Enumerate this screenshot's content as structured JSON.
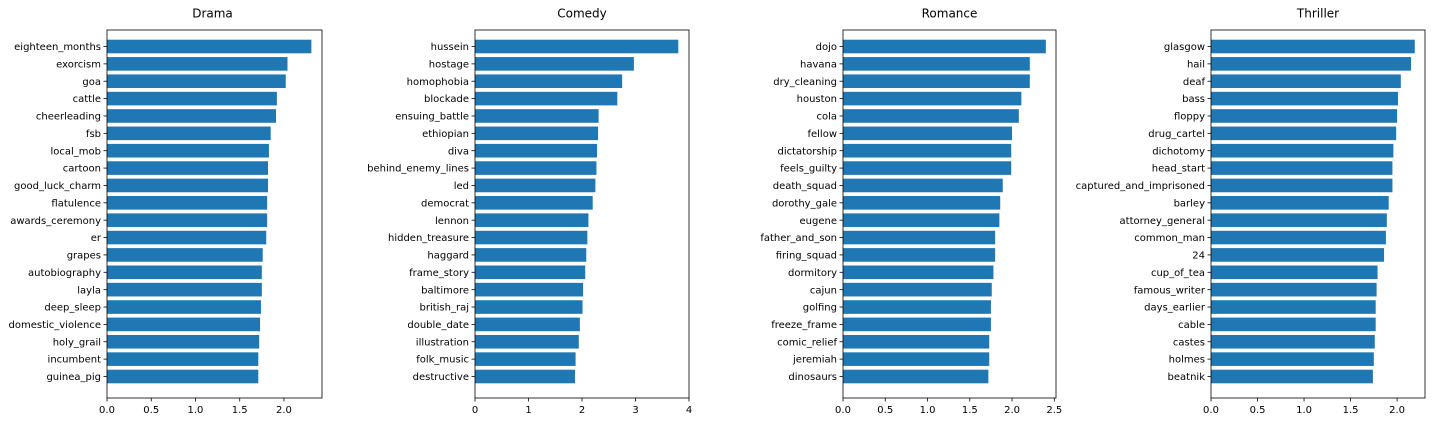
{
  "chart_data": [
    {
      "type": "bar",
      "orientation": "horizontal",
      "title": "Drama",
      "xlabel": "",
      "ylabel": "",
      "xlim": [
        0,
        2.43
      ],
      "xticks": [
        "0.0",
        "0.5",
        "1.0",
        "1.5",
        "2.0"
      ],
      "xtick_values": [
        0,
        0.5,
        1.0,
        1.5,
        2.0
      ],
      "grid": false,
      "bar_color": "#1f77b4",
      "categories": [
        "eighteen_months",
        "exorcism",
        "goa",
        "cattle",
        "cheerleading",
        "fsb",
        "local_mob",
        "cartoon",
        "good_luck_charm",
        "flatulence",
        "awards_ceremony",
        "er",
        "grapes",
        "autobiography",
        "layla",
        "deep_sleep",
        "domestic_violence",
        "holy_grail",
        "incumbent",
        "guinea_pig"
      ],
      "values": [
        2.31,
        2.04,
        2.02,
        1.92,
        1.91,
        1.85,
        1.83,
        1.82,
        1.82,
        1.81,
        1.81,
        1.8,
        1.76,
        1.75,
        1.75,
        1.74,
        1.73,
        1.72,
        1.71,
        1.71
      ]
    },
    {
      "type": "bar",
      "orientation": "horizontal",
      "title": "Comedy",
      "xlabel": "",
      "ylabel": "",
      "xlim": [
        0,
        4.0
      ],
      "xticks": [
        "0",
        "1",
        "2",
        "3",
        "4"
      ],
      "xtick_values": [
        0,
        1,
        2,
        3,
        4
      ],
      "grid": false,
      "bar_color": "#1f77b4",
      "categories": [
        "hussein",
        "hostage",
        "homophobia",
        "blockade",
        "ensuing_battle",
        "ethiopian",
        "diva",
        "behind_enemy_lines",
        "led",
        "democrat",
        "lennon",
        "hidden_treasure",
        "haggard",
        "frame_story",
        "baltimore",
        "british_raj",
        "double_date",
        "illustration",
        "folk_music",
        "destructive"
      ],
      "values": [
        3.8,
        2.97,
        2.75,
        2.66,
        2.31,
        2.3,
        2.28,
        2.27,
        2.25,
        2.2,
        2.12,
        2.1,
        2.08,
        2.06,
        2.02,
        2.01,
        1.96,
        1.94,
        1.88,
        1.87
      ]
    },
    {
      "type": "bar",
      "orientation": "horizontal",
      "title": "Romance",
      "xlabel": "",
      "ylabel": "",
      "xlim": [
        0,
        2.52
      ],
      "xticks": [
        "0.0",
        "0.5",
        "1.0",
        "1.5",
        "2.0",
        "2.5"
      ],
      "xtick_values": [
        0,
        0.5,
        1.0,
        1.5,
        2.0,
        2.5
      ],
      "grid": false,
      "bar_color": "#1f77b4",
      "categories": [
        "dojo",
        "havana",
        "dry_cleaning",
        "houston",
        "cola",
        "fellow",
        "dictatorship",
        "feels_guilty",
        "death_squad",
        "dorothy_gale",
        "eugene",
        "father_and_son",
        "firing_squad",
        "dormitory",
        "cajun",
        "golfing",
        "freeze_frame",
        "comic_relief",
        "jeremiah",
        "dinosaurs"
      ],
      "values": [
        2.4,
        2.21,
        2.21,
        2.11,
        2.08,
        2.0,
        1.99,
        1.99,
        1.89,
        1.86,
        1.85,
        1.8,
        1.8,
        1.78,
        1.76,
        1.75,
        1.75,
        1.73,
        1.73,
        1.72
      ]
    },
    {
      "type": "bar",
      "orientation": "horizontal",
      "title": "Thriller",
      "xlabel": "",
      "ylabel": "",
      "xlim": [
        0,
        2.3
      ],
      "xticks": [
        "0.0",
        "0.5",
        "1.0",
        "1.5",
        "2.0"
      ],
      "xtick_values": [
        0,
        0.5,
        1.0,
        1.5,
        2.0
      ],
      "grid": false,
      "bar_color": "#1f77b4",
      "categories": [
        "glasgow",
        "hail",
        "deaf",
        "bass",
        "floppy",
        "drug_cartel",
        "dichotomy",
        "head_start",
        "captured_and_imprisoned",
        "barley",
        "attorney_general",
        "common_man",
        "24",
        "cup_of_tea",
        "famous_writer",
        "days_earlier",
        "cable",
        "castes",
        "holmes",
        "beatnik"
      ],
      "values": [
        2.19,
        2.15,
        2.04,
        2.01,
        2.0,
        1.99,
        1.96,
        1.95,
        1.95,
        1.91,
        1.89,
        1.88,
        1.86,
        1.79,
        1.78,
        1.77,
        1.77,
        1.76,
        1.75,
        1.74
      ]
    }
  ]
}
